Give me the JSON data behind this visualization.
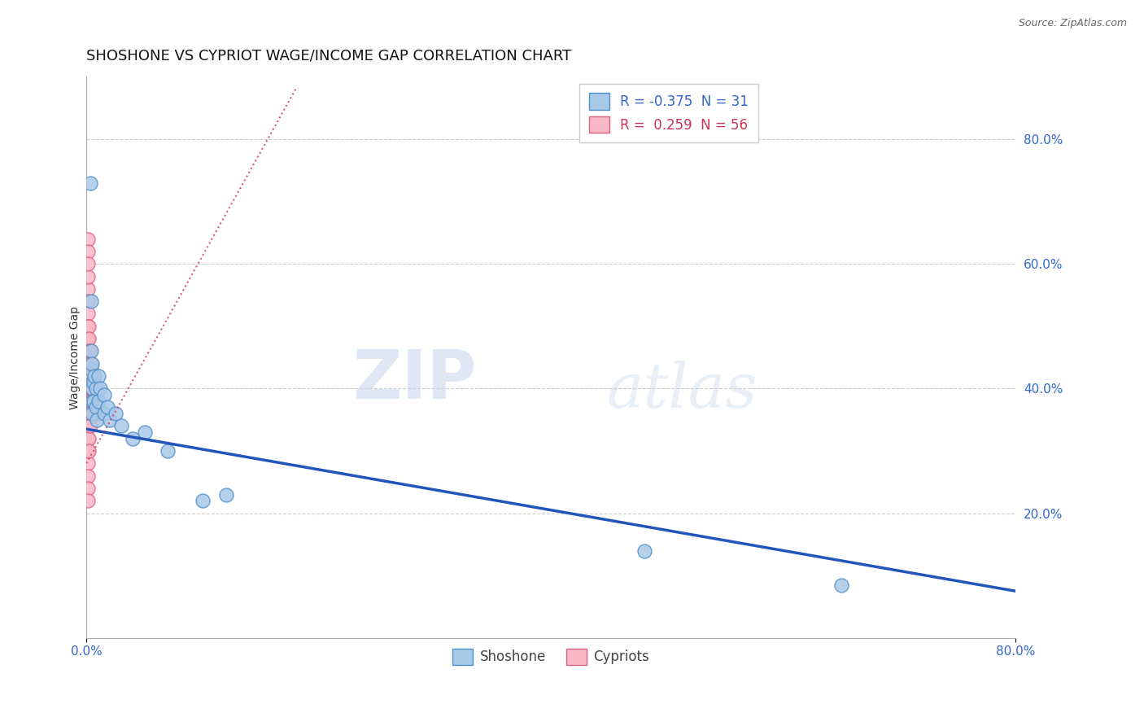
{
  "title": "SHOSHONE VS CYPRIOT WAGE/INCOME GAP CORRELATION CHART",
  "source": "Source: ZipAtlas.com",
  "ylabel": "Wage/Income Gap",
  "xlim": [
    0.0,
    0.8
  ],
  "ylim": [
    0.0,
    0.9
  ],
  "right_yticks": [
    0.2,
    0.4,
    0.6,
    0.8
  ],
  "right_ytick_labels": [
    "20.0%",
    "40.0%",
    "60.0%",
    "80.0%"
  ],
  "xtick_positions": [
    0.0,
    0.8
  ],
  "xtick_labels": [
    "0.0%",
    "80.0%"
  ],
  "shoshone_color": "#a8c8e8",
  "cypriot_color": "#f8b8c8",
  "shoshone_edge_color": "#5090c8",
  "cypriot_edge_color": "#e06080",
  "trend_shoshone_color": "#2255bb",
  "trend_cypriot_color": "#cc3355",
  "R_shoshone": -0.375,
  "N_shoshone": 31,
  "R_cypriot": 0.259,
  "N_cypriot": 56,
  "shoshone_trend_x0": 0.0,
  "shoshone_trend_y0": 0.335,
  "shoshone_trend_x1": 0.8,
  "shoshone_trend_y1": 0.075,
  "cypriot_trend_x0": 0.0,
  "cypriot_trend_y0": 0.28,
  "cypriot_trend_x1": 0.18,
  "cypriot_trend_y1": 0.88,
  "shoshone_x": [
    0.003,
    0.004,
    0.004,
    0.004,
    0.005,
    0.005,
    0.005,
    0.005,
    0.005,
    0.006,
    0.006,
    0.007,
    0.008,
    0.008,
    0.009,
    0.01,
    0.01,
    0.012,
    0.015,
    0.015,
    0.018,
    0.02,
    0.025,
    0.03,
    0.04,
    0.05,
    0.07,
    0.1,
    0.12,
    0.48,
    0.65
  ],
  "shoshone_y": [
    0.73,
    0.54,
    0.46,
    0.43,
    0.44,
    0.41,
    0.4,
    0.38,
    0.36,
    0.41,
    0.38,
    0.42,
    0.4,
    0.37,
    0.35,
    0.42,
    0.38,
    0.4,
    0.39,
    0.36,
    0.37,
    0.35,
    0.36,
    0.34,
    0.32,
    0.33,
    0.3,
    0.22,
    0.23,
    0.14,
    0.085
  ],
  "cypriot_x": [
    0.001,
    0.001,
    0.001,
    0.001,
    0.001,
    0.001,
    0.001,
    0.001,
    0.001,
    0.001,
    0.001,
    0.001,
    0.001,
    0.001,
    0.001,
    0.001,
    0.001,
    0.001,
    0.001,
    0.001,
    0.001,
    0.001,
    0.001,
    0.001,
    0.001,
    0.001,
    0.001,
    0.001,
    0.002,
    0.002,
    0.002,
    0.002,
    0.002,
    0.002,
    0.002,
    0.002,
    0.002,
    0.002,
    0.002,
    0.003,
    0.003,
    0.003,
    0.003,
    0.003,
    0.003,
    0.003,
    0.004,
    0.004,
    0.004,
    0.004,
    0.005,
    0.005,
    0.006,
    0.006,
    0.008,
    0.01
  ],
  "cypriot_y": [
    0.56,
    0.54,
    0.52,
    0.5,
    0.48,
    0.46,
    0.44,
    0.42,
    0.4,
    0.38,
    0.36,
    0.34,
    0.32,
    0.3,
    0.28,
    0.26,
    0.24,
    0.22,
    0.64,
    0.58,
    0.62,
    0.6,
    0.5,
    0.48,
    0.46,
    0.44,
    0.42,
    0.4,
    0.5,
    0.48,
    0.46,
    0.44,
    0.42,
    0.4,
    0.38,
    0.36,
    0.34,
    0.32,
    0.3,
    0.46,
    0.44,
    0.42,
    0.4,
    0.38,
    0.36,
    0.34,
    0.44,
    0.42,
    0.4,
    0.38,
    0.42,
    0.38,
    0.4,
    0.36,
    0.38,
    0.36
  ],
  "background_color": "#ffffff",
  "grid_color": "#cccccc",
  "watermark_zip": "ZIP",
  "watermark_atlas": "atlas",
  "title_fontsize": 13,
  "axis_label_fontsize": 10,
  "tick_fontsize": 11,
  "legend_fontsize": 12
}
